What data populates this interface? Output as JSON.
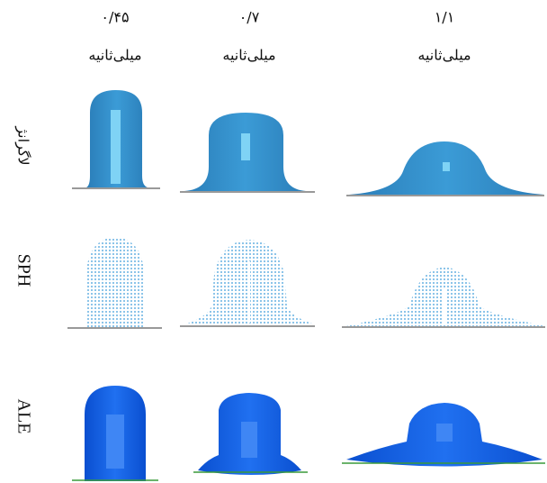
{
  "columns": [
    {
      "time": "۰/۴۵",
      "unit": "میلی‌ثانیه"
    },
    {
      "time": "۰/۷",
      "unit": "میلی‌ثانیه"
    },
    {
      "time": "۱/۱",
      "unit": "میلی‌ثانیه"
    }
  ],
  "rows": [
    {
      "label": "لاگرانژ"
    },
    {
      "label": "SPH"
    },
    {
      "label": "ALE"
    }
  ]
}
